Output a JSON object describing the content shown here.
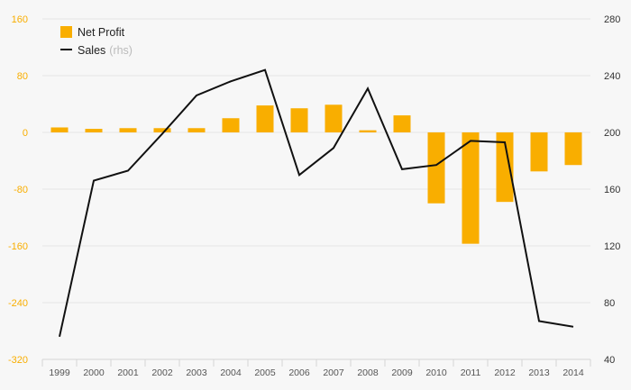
{
  "chart_data": {
    "type": "bar",
    "categories": [
      "1999",
      "2000",
      "2001",
      "2002",
      "2003",
      "2004",
      "2005",
      "2006",
      "2007",
      "2008",
      "2009",
      "2010",
      "2011",
      "2012",
      "2013",
      "2014"
    ],
    "series": [
      {
        "name": "Net Profit",
        "type": "bar",
        "axis": "left",
        "color": "#f9ae00",
        "values": [
          7,
          5,
          6,
          6,
          6,
          20,
          38,
          34,
          39,
          3,
          24,
          -100,
          -157,
          -98,
          -55,
          -46
        ]
      },
      {
        "name": "Sales",
        "name_suffix": "(rhs)",
        "type": "line",
        "axis": "right",
        "color": "#111111",
        "values": [
          56,
          166,
          173,
          199,
          226,
          236,
          244,
          170,
          189,
          231,
          174,
          177,
          194,
          193,
          67,
          63
        ]
      }
    ],
    "y_left": {
      "ticks": [
        160,
        80,
        0,
        -80,
        -160,
        -240,
        -320
      ],
      "ylim": [
        -320,
        160
      ],
      "tick_color": "#f9ae00"
    },
    "y_right": {
      "ticks": [
        280,
        240,
        200,
        160,
        120,
        80,
        40
      ],
      "ylim": [
        40,
        280
      ],
      "tick_color": "#333333"
    },
    "grid": true,
    "legend_position": "top-left",
    "title": "",
    "xlabel": "",
    "ylabel": ""
  }
}
